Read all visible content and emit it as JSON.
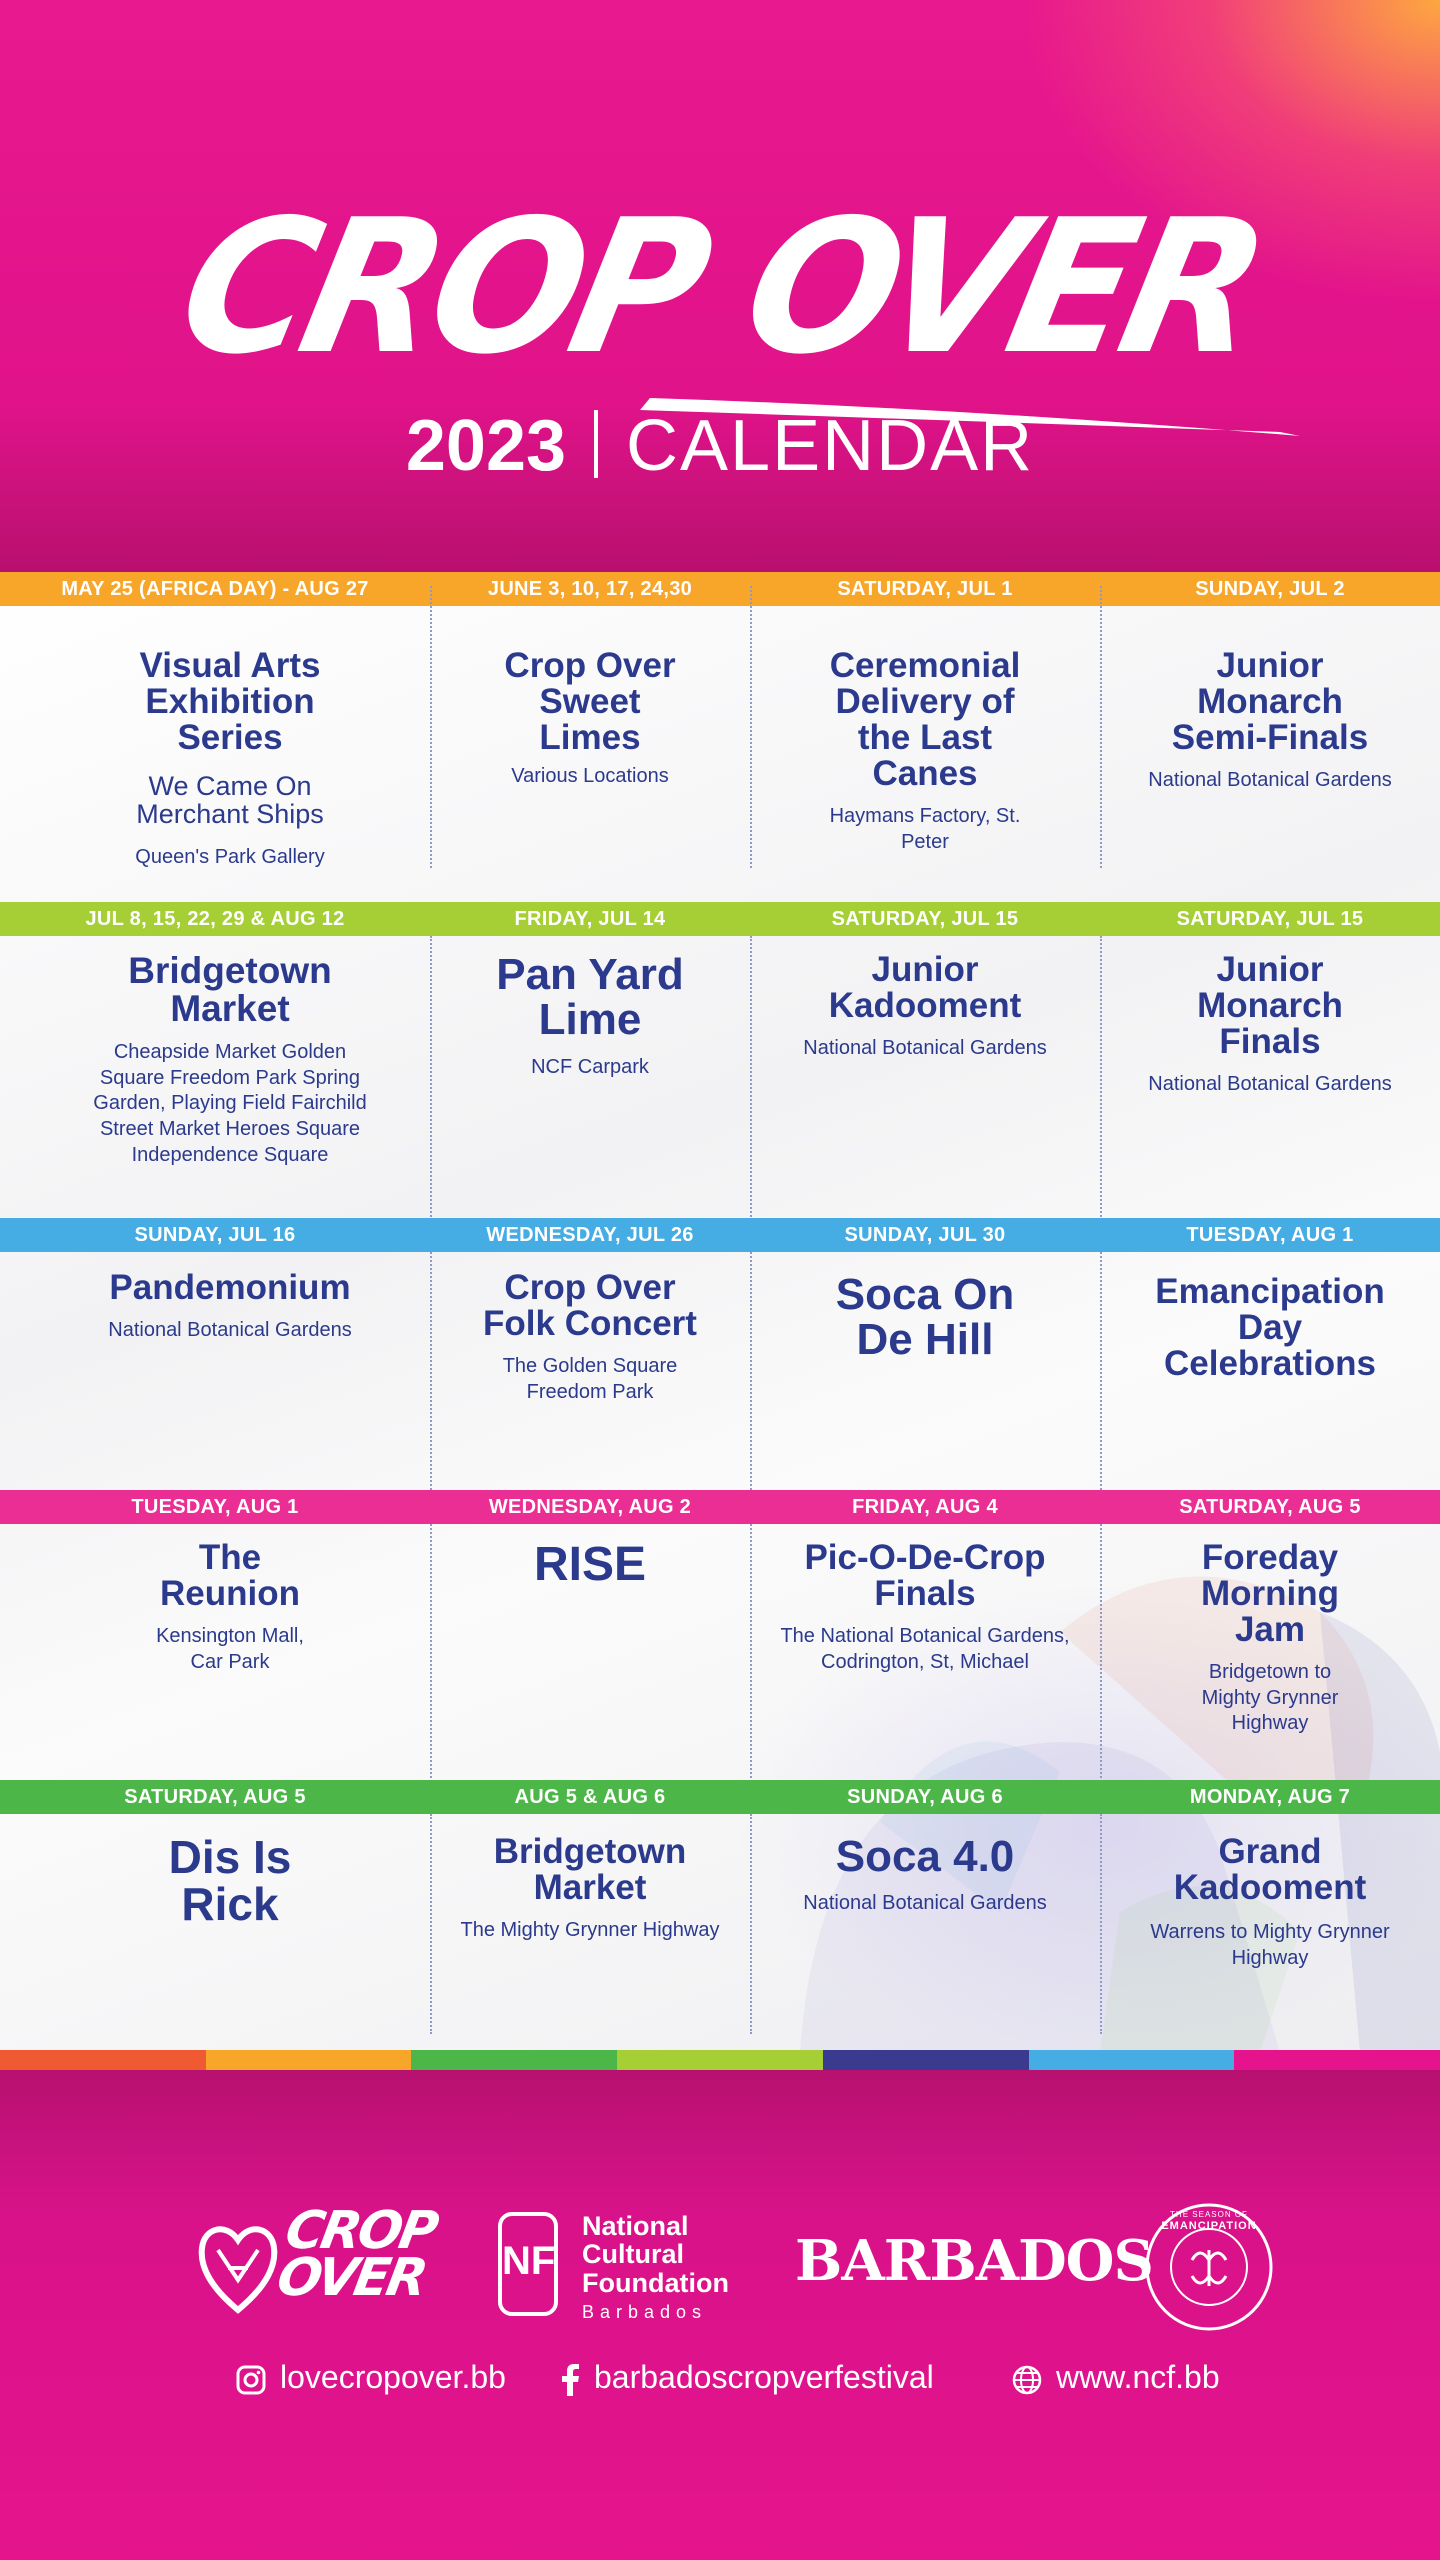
{
  "header": {
    "title": "CROP OVER",
    "year": "2023",
    "subtitle": "CALENDAR"
  },
  "colors": {
    "navy": "#2b3a8c",
    "magenta": "#e5148c",
    "orange": "#f7a629",
    "lime": "#a6cf36",
    "sky": "#45ade3",
    "pink": "#ea2e93",
    "green": "#4db648"
  },
  "rows": [
    {
      "band_color": "#f7a629",
      "cells": [
        {
          "date": "MAY 25 (AFRICA DAY) - AUG 27",
          "title": "Visual Arts Exhibition Series",
          "subtitle": "We Came On Merchant Ships",
          "location": "Queen's Park Gallery"
        },
        {
          "date": "JUNE 3, 10, 17, 24,30",
          "title": "Crop Over Sweet Limes",
          "subtitle": "",
          "location": "Various Locations"
        },
        {
          "date": "SATURDAY,  JUL 1",
          "title": "Ceremonial Delivery of the Last Canes",
          "subtitle": "",
          "location": "Haymans Factory, St. Peter"
        },
        {
          "date": "SUNDAY,  JUL 2",
          "title": "Junior Monarch Semi-Finals",
          "subtitle": "",
          "location": "National Botanical Gardens"
        }
      ]
    },
    {
      "band_color": "#a6cf36",
      "cells": [
        {
          "date": "JUL 8, 15, 22, 29 & AUG 12",
          "title": "Bridgetown Market",
          "subtitle": "",
          "location": "Cheapside Market Golden Square Freedom Park Spring Garden, Playing Field Fairchild Street Market Heroes Square Independence Square"
        },
        {
          "date": "FRIDAY, JUL 14",
          "title": "Pan Yard Lime",
          "subtitle": "",
          "location": "NCF Carpark"
        },
        {
          "date": "SATURDAY, JUL 15",
          "title": "Junior Kadooment",
          "subtitle": "",
          "location": "National Botanical Gardens"
        },
        {
          "date": "SATURDAY, JUL 15",
          "title": "Junior Monarch Finals",
          "subtitle": "",
          "location": "National Botanical Gardens"
        }
      ]
    },
    {
      "band_color": "#45ade3",
      "cells": [
        {
          "date": "SUNDAY, JUL 16",
          "title": "Pandemonium",
          "subtitle": "",
          "location": "National Botanical Gardens"
        },
        {
          "date": "WEDNESDAY, JUL 26",
          "title": "Crop Over Folk Concert",
          "subtitle": "",
          "location": "The Golden Square Freedom Park"
        },
        {
          "date": "SUNDAY, JUL 30",
          "title": "Soca On De Hill",
          "subtitle": "",
          "location": ""
        },
        {
          "date": "TUESDAY, AUG 1",
          "title": "Emancipation Day Celebrations",
          "subtitle": "",
          "location": ""
        }
      ]
    },
    {
      "band_color": "#ea2e93",
      "cells": [
        {
          "date": "TUESDAY, AUG 1",
          "title": "The Reunion",
          "subtitle": "",
          "location": "Kensington Mall, Car Park"
        },
        {
          "date": "WEDNESDAY, AUG 2",
          "title": "RISE",
          "subtitle": "",
          "location": ""
        },
        {
          "date": "FRIDAY, AUG 4",
          "title": "Pic-O-De-Crop Finals",
          "subtitle": "",
          "location": "The National Botanical Gardens, Codrington, St, Michael"
        },
        {
          "date": "SATURDAY, AUG 5",
          "title": "Foreday Morning Jam",
          "subtitle": "",
          "location": "Bridgetown to Mighty Grynner Highway"
        }
      ]
    },
    {
      "band_color": "#4db648",
      "cells": [
        {
          "date": "SATURDAY, AUG 5",
          "title": "Dis Is Rick",
          "subtitle": "",
          "location": ""
        },
        {
          "date": "AUG 5 & AUG 6",
          "title": "Bridgetown Market",
          "subtitle": "",
          "location": "The Mighty Grynner Highway"
        },
        {
          "date": "SUNDAY, AUG 6",
          "title": "Soca 4.0",
          "subtitle": "",
          "location": "National Botanical Gardens"
        },
        {
          "date": "MONDAY, AUG 7",
          "title": "Grand Kadooment",
          "subtitle": "",
          "location": "Warrens to Mighty Grynner Highway"
        }
      ]
    }
  ],
  "stripe_colors": [
    "#f05a32",
    "#f7a629",
    "#4db648",
    "#a6cf36",
    "#3a3a8f",
    "#45ade3",
    "#e5148c"
  ],
  "footer": {
    "logo_crop": "CROP",
    "logo_over": "OVER",
    "ncf_mark": "NF",
    "ncf_line1": "National",
    "ncf_line2": "Cultural",
    "ncf_line3": "Foundation",
    "ncf_line4": "Barbados",
    "barbados": "BARBADOS",
    "emancipation_top": "THE SEASON OF",
    "emancipation": "EMANCIPATION",
    "instagram": "lovecropover.bb",
    "facebook": "barbadoscropverfestival",
    "website": "www.ncf.bb"
  }
}
